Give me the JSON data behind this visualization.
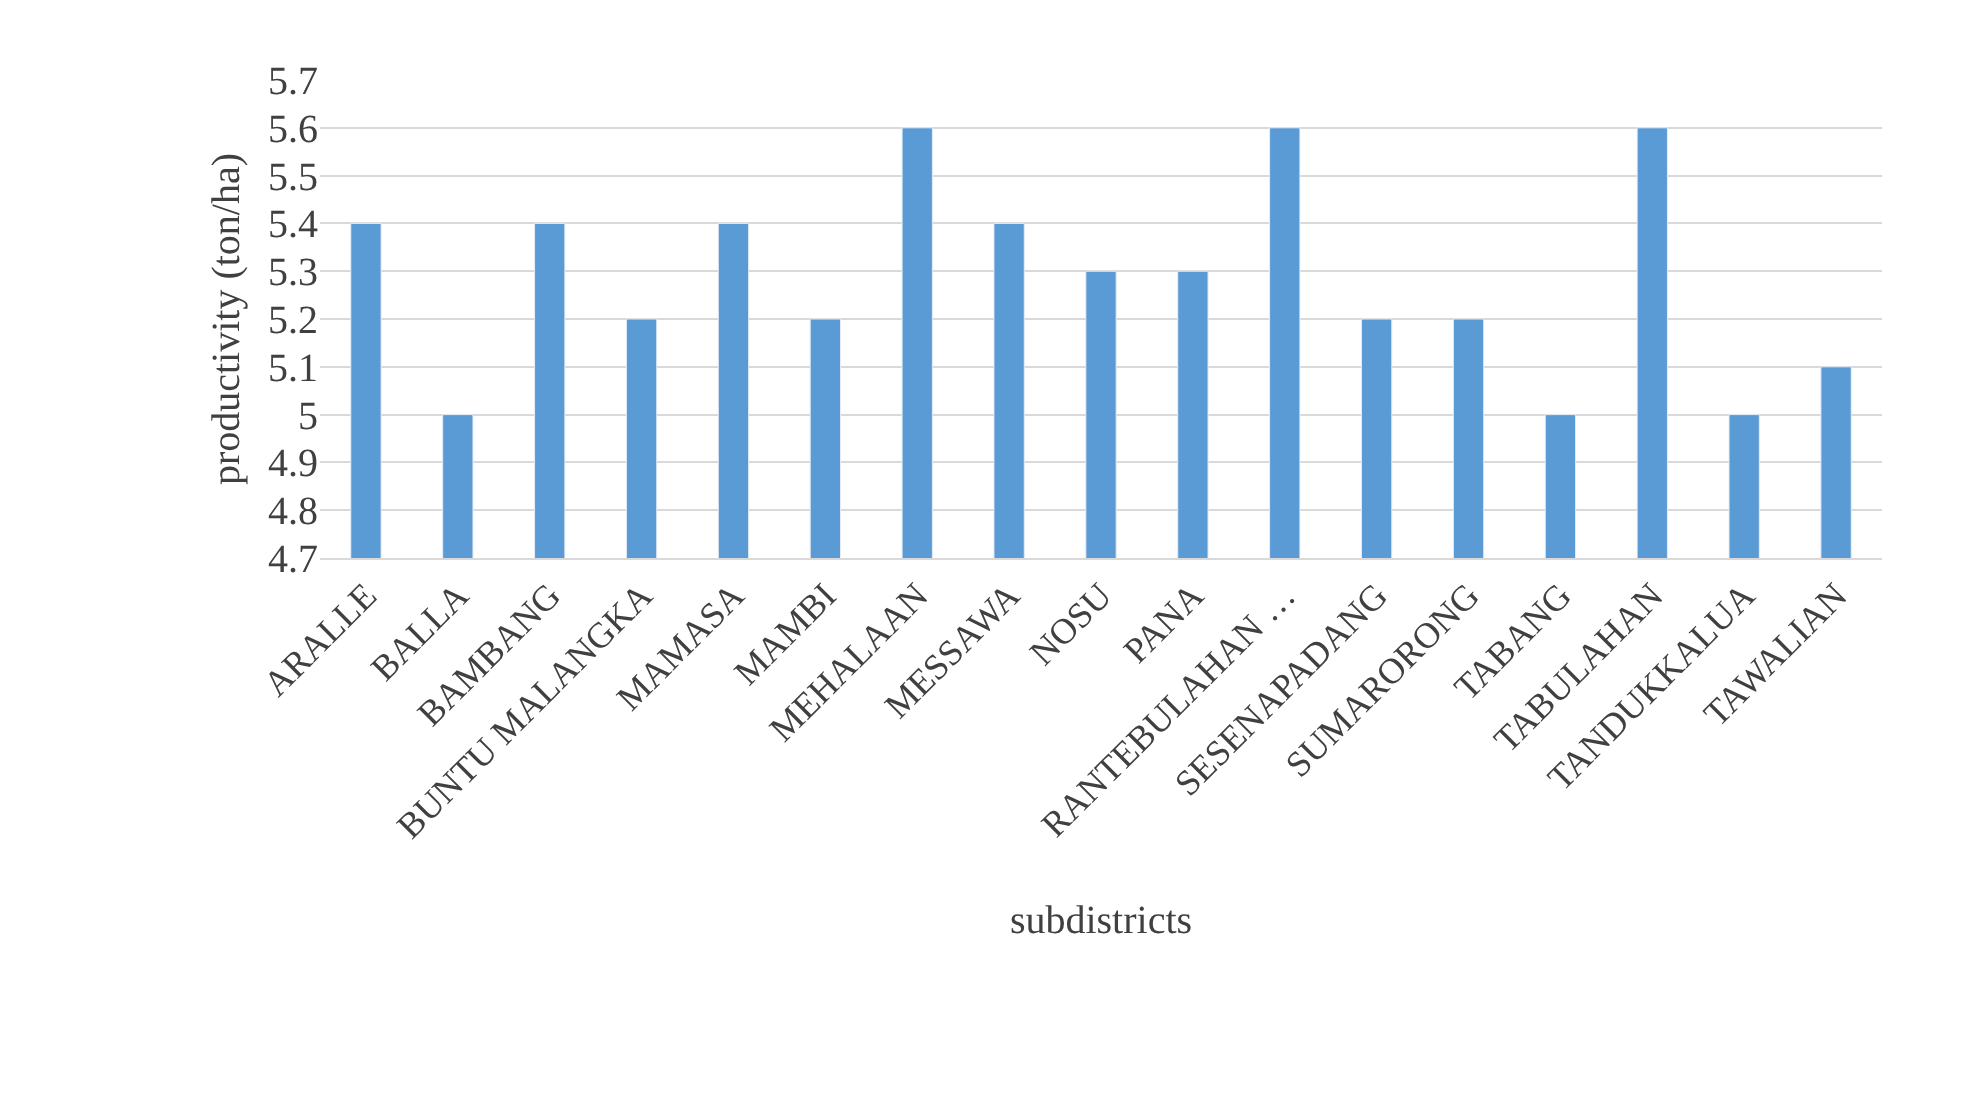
{
  "chart_data": {
    "type": "bar",
    "xlabel": "subdistricts",
    "ylabel": "productivity (ton/ha)",
    "categories": [
      "ARALLE",
      "BALLA",
      "BAMBANG",
      "BUNTU MALANGKA",
      "MAMASA",
      "MAMBI",
      "MEHALAAN",
      "MESSAWA",
      "NOSU",
      "PANA",
      "RANTEBULAHAN …",
      "SESENAPADANG",
      "SUMARORONG",
      "TABANG",
      "TABULAHAN",
      "TANDUKKALUA",
      "TAWALIAN"
    ],
    "values": [
      5.4,
      5.0,
      5.4,
      5.2,
      5.4,
      5.2,
      5.6,
      5.4,
      5.3,
      5.3,
      5.6,
      5.2,
      5.2,
      5.0,
      5.6,
      5.0,
      5.1
    ],
    "color": "#5b9bd5",
    "ylim": [
      4.7,
      5.7
    ],
    "yticks": [
      4.7,
      4.8,
      4.9,
      5,
      5.1,
      5.2,
      5.3,
      5.4,
      5.5,
      5.6,
      5.7
    ],
    "grid": "y"
  }
}
